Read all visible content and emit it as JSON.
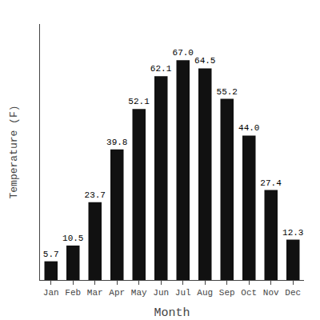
{
  "chart_data": {
    "type": "bar",
    "xlabel": "Month",
    "ylabel": "Temperature (F)",
    "categories": [
      "Jan",
      "Feb",
      "Mar",
      "Apr",
      "May",
      "Jun",
      "Jul",
      "Aug",
      "Sep",
      "Oct",
      "Nov",
      "Dec"
    ],
    "values": [
      5.7,
      10.5,
      23.7,
      39.8,
      52.1,
      62.1,
      67.0,
      64.5,
      55.2,
      44.0,
      27.4,
      12.3
    ],
    "value_labels": [
      "5.7",
      "10.5",
      "23.7",
      "39.8",
      "52.1",
      "62.1",
      "67.0",
      "64.5",
      "55.2",
      "44.0",
      "27.4",
      "12.3"
    ],
    "color": "#111111",
    "ylim": [
      0,
      78
    ],
    "yticks": [],
    "grid": false,
    "data_labels": true,
    "tick_labels": "x"
  }
}
